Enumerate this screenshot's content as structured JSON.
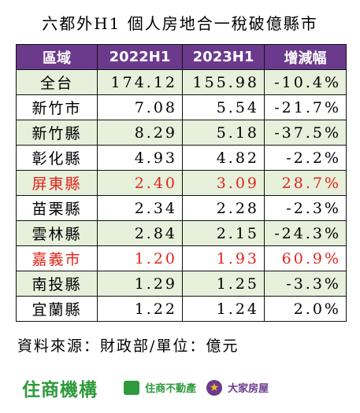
{
  "title": "六都外H1 個人房地合一稅破億縣市",
  "table": {
    "headers": [
      "區域",
      "2022H1",
      "2023H1",
      "增減幅"
    ],
    "rows": [
      {
        "region": "全台",
        "h1_2022": "174.12",
        "h1_2023": "155.98",
        "change": "-10.4%",
        "shaded": true,
        "highlight": false
      },
      {
        "region": "新竹市",
        "h1_2022": "7.08",
        "h1_2023": "5.54",
        "change": "-21.7%",
        "shaded": false,
        "highlight": false
      },
      {
        "region": "新竹縣",
        "h1_2022": "8.29",
        "h1_2023": "5.18",
        "change": "-37.5%",
        "shaded": true,
        "highlight": false
      },
      {
        "region": "彰化縣",
        "h1_2022": "4.93",
        "h1_2023": "4.82",
        "change": "-2.2%",
        "shaded": false,
        "highlight": false
      },
      {
        "region": "屏東縣",
        "h1_2022": "2.40",
        "h1_2023": "3.09",
        "change": "28.7%",
        "shaded": true,
        "highlight": true
      },
      {
        "region": "苗栗縣",
        "h1_2022": "2.34",
        "h1_2023": "2.28",
        "change": "-2.3%",
        "shaded": false,
        "highlight": false
      },
      {
        "region": "雲林縣",
        "h1_2022": "2.84",
        "h1_2023": "2.15",
        "change": "-24.3%",
        "shaded": true,
        "highlight": false
      },
      {
        "region": "嘉義市",
        "h1_2022": "1.20",
        "h1_2023": "1.93",
        "change": "60.9%",
        "shaded": false,
        "highlight": true
      },
      {
        "region": "南投縣",
        "h1_2022": "1.29",
        "h1_2023": "1.25",
        "change": "-3.3%",
        "shaded": true,
        "highlight": false
      },
      {
        "region": "宜蘭縣",
        "h1_2022": "1.22",
        "h1_2023": "1.24",
        "change": "2.0%",
        "shaded": false,
        "highlight": false
      }
    ]
  },
  "source": "資料來源：財政部/單位：億元",
  "logos": {
    "main": "住商機構",
    "second": "住商不動產",
    "third": "大家房屋"
  },
  "colors": {
    "header_bg": "#6b3a8c",
    "shaded_row": "#e6f0da",
    "highlight_text": "#e0241b",
    "brand_green": "#2f9a3c"
  }
}
